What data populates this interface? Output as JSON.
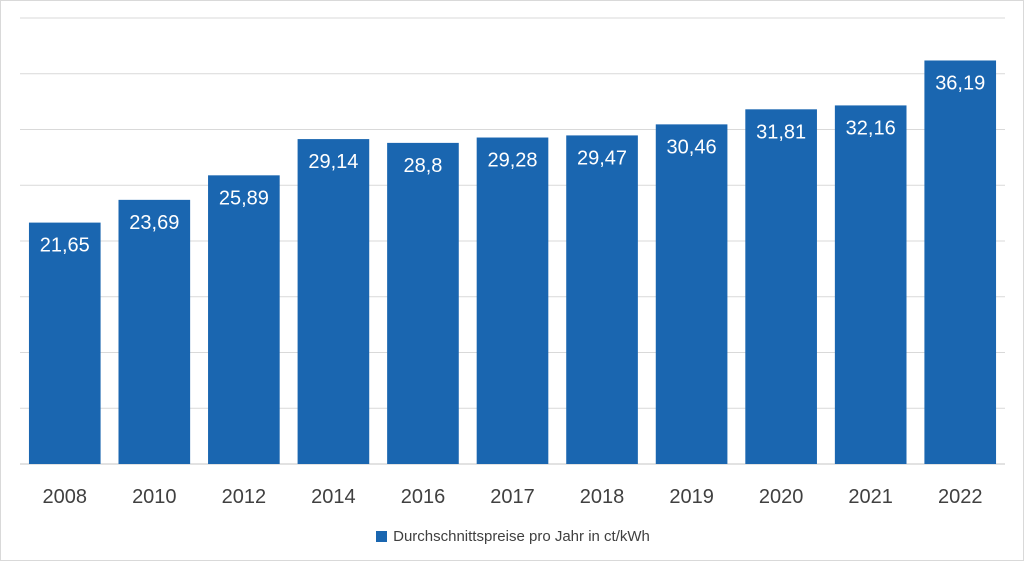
{
  "chart_data": {
    "type": "bar",
    "categories": [
      "2008",
      "2010",
      "2012",
      "2014",
      "2016",
      "2017",
      "2018",
      "2019",
      "2020",
      "2021",
      "2022"
    ],
    "series": [
      {
        "name": "Durchschnittspreise pro Jahr in ct/kWh",
        "values": [
          21.65,
          23.69,
          25.89,
          29.14,
          28.8,
          29.28,
          29.47,
          30.46,
          31.81,
          32.16,
          36.19
        ],
        "labels": [
          "21,65",
          "23,69",
          "25,89",
          "29,14",
          "28,8",
          "29,28",
          "29,47",
          "30,46",
          "31,81",
          "32,16",
          "36,19"
        ]
      }
    ],
    "ylim": [
      0,
      40
    ],
    "grid": true,
    "legend_position": "bottom",
    "bar_color": "#1a66b0",
    "grid_color": "#d9d9d9",
    "axis_label_color": "#404040",
    "data_label_color": "#ffffff"
  }
}
